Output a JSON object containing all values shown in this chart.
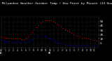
{
  "title": "Milwaukee Weather Outdoor Temp / Dew Point by Minute (24 Hours) (Alternate)",
  "title_fontsize": 3.2,
  "bg_color": "#000000",
  "plot_bg_color": "#000000",
  "grid_color": "#555555",
  "temp_color": "#ff0000",
  "dew_color": "#0000ff",
  "ylim": [
    -5,
    65
  ],
  "yticks": [
    5,
    15,
    25,
    35,
    45,
    55
  ],
  "ytick_labels": [
    "5",
    "15",
    "25",
    "35",
    "45",
    "55"
  ],
  "ytick_fontsize": 3.0,
  "xtick_fontsize": 2.2,
  "temp_data": [
    20,
    19,
    18,
    17,
    17,
    16,
    16,
    15,
    15,
    15,
    14,
    14,
    16,
    20,
    25,
    30,
    36,
    42,
    47,
    52,
    55,
    57,
    58,
    58,
    57,
    55,
    52,
    49,
    46,
    43,
    40,
    37,
    34,
    31,
    28,
    26,
    24,
    22,
    20,
    18,
    17,
    16,
    15,
    14,
    13,
    12,
    11,
    10
  ],
  "dew_data": [
    12,
    11,
    10,
    10,
    9,
    9,
    8,
    8,
    8,
    7,
    7,
    7,
    8,
    9,
    11,
    14,
    17,
    20,
    22,
    23,
    22,
    20,
    18,
    16,
    14,
    12,
    10,
    8,
    6,
    4,
    3,
    2,
    1,
    0,
    -1,
    -1,
    -1,
    -1,
    -1,
    -1,
    -1,
    -1,
    -1,
    -1,
    -1,
    -1,
    -1,
    -1
  ],
  "x_labels": [
    "12",
    "1",
    "2",
    "3",
    "4",
    "5",
    "6",
    "7",
    "8",
    "9",
    "10",
    "11",
    "12",
    "1",
    "2",
    "3",
    "4",
    "5",
    "6",
    "7",
    "8",
    "9",
    "10",
    "11"
  ],
  "x_sublabels": [
    "AM",
    "",
    "",
    "",
    "",
    "",
    "",
    "",
    "",
    "",
    "",
    "",
    "PM",
    "",
    "",
    "",
    "",
    "",
    "",
    "",
    "",
    "",
    "",
    ""
  ]
}
